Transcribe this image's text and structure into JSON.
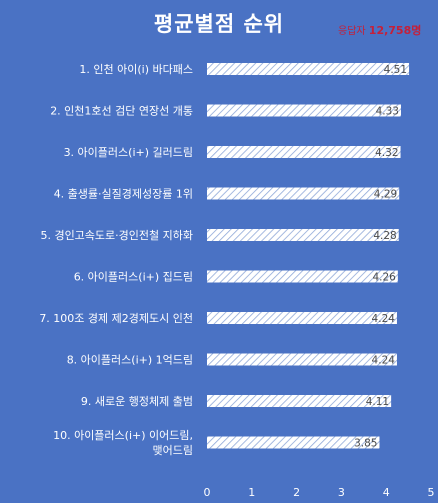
{
  "title": "평균별점 순위",
  "respondents": {
    "label": "응답자",
    "count": "12,758명"
  },
  "chart_data": {
    "type": "bar",
    "orientation": "horizontal",
    "categories": [
      "1. 인천 아이(i) 바다패스",
      "2. 인천1호선 검단 연장선 개통",
      "3. 아이플러스(i+) 길러드림",
      "4. 출생률·실질경제성장률 1위",
      "5. 경인고속도로·경인전철 지하화",
      "6. 아이플러스(i+) 집드림",
      "7. 100조 경제 제2경제도시 인천",
      "8. 아이플러스(i+) 1억드림",
      "9. 새로운 행정체제 출범",
      [
        "10. 아이플러스(i+) 이어드림,",
        "맺어드림"
      ]
    ],
    "values": [
      4.51,
      4.33,
      4.32,
      4.29,
      4.28,
      4.26,
      4.24,
      4.24,
      4.11,
      3.85
    ],
    "value_labels": [
      "4.51",
      "4.33",
      "4.32",
      "4.29",
      "4.28",
      "4.26",
      "4.24",
      "4.24",
      "4.11",
      "3.85"
    ],
    "x_ticks": [
      "0",
      "1",
      "2",
      "3",
      "4",
      "5"
    ],
    "xlim": [
      0,
      5
    ],
    "bar_style": "white diagonal hatch",
    "grid": false,
    "colors": {
      "background": "#4a72c4",
      "bar_fill": "#ffffff",
      "bar_hatch": "#8fa8d8",
      "text": "#ffffff",
      "value_label": "#4a4a4a",
      "respondents": "#c4203a"
    }
  }
}
